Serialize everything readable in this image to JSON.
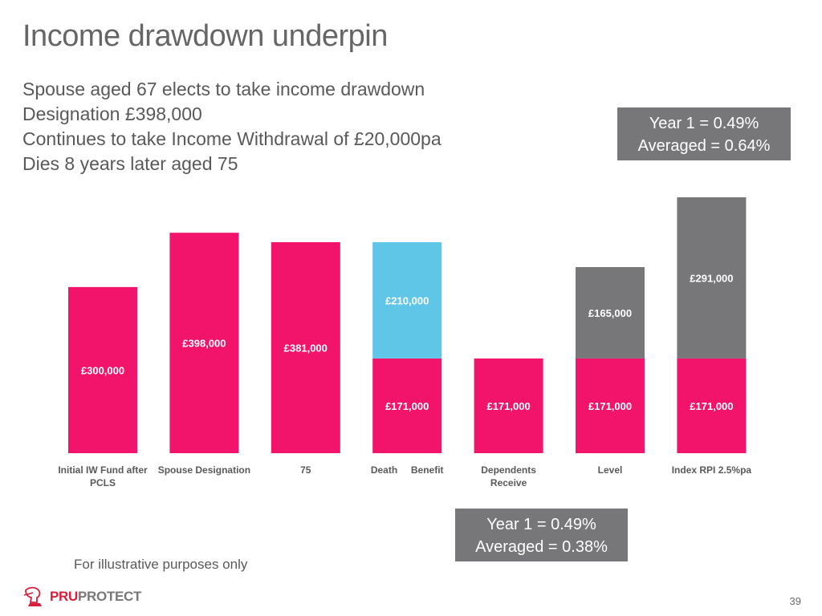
{
  "title": "Income drawdown underpin",
  "intro": [
    "Spouse aged 67 elects to take income drawdown",
    "Designation £398,000",
    "Continues to take Income Withdrawal of £20,000pa",
    "Dies 8 years later aged 75"
  ],
  "callouts": {
    "top": [
      "Year 1 = 0.49%",
      "Averaged = 0.64%"
    ],
    "bottom": [
      "Year 1 = 0.49%",
      "Averaged = 0.38%"
    ]
  },
  "footnote": "For illustrative purposes only",
  "logo": {
    "pru": "PRU",
    "protect": "PROTECT"
  },
  "page_number": "39",
  "colors": {
    "pink": "#f2136a",
    "blue": "#5fc6e8",
    "grey": "#77777a",
    "label": "#59595b"
  },
  "chart_data": {
    "type": "bar",
    "stacked": true,
    "grid": false,
    "categories": [
      [
        "Initial IW Fund after",
        "PCLS"
      ],
      [
        "Spouse Designation"
      ],
      [
        "75"
      ],
      [
        "Death     Benefit"
      ],
      [
        "Dependents",
        "Receive"
      ],
      [
        "Level"
      ],
      [
        "Index RPI 2.5%pa"
      ]
    ],
    "bars": [
      [
        {
          "value": 300000,
          "label": "£300,000",
          "color": "pink"
        }
      ],
      [
        {
          "value": 398000,
          "label": "£398,000",
          "color": "pink"
        }
      ],
      [
        {
          "value": 381000,
          "label": "£381,000",
          "color": "pink"
        }
      ],
      [
        {
          "value": 171000,
          "label": "£171,000",
          "color": "pink"
        },
        {
          "value": 210000,
          "label": "£210,000",
          "color": "blue"
        }
      ],
      [
        {
          "value": 171000,
          "label": "£171,000",
          "color": "pink"
        }
      ],
      [
        {
          "value": 171000,
          "label": "£171,000",
          "color": "pink"
        },
        {
          "value": 165000,
          "label": "£165,000",
          "color": "grey"
        }
      ],
      [
        {
          "value": 171000,
          "label": "£171,000",
          "color": "pink"
        },
        {
          "value": 291000,
          "label": "£291,000",
          "color": "grey"
        }
      ]
    ]
  }
}
